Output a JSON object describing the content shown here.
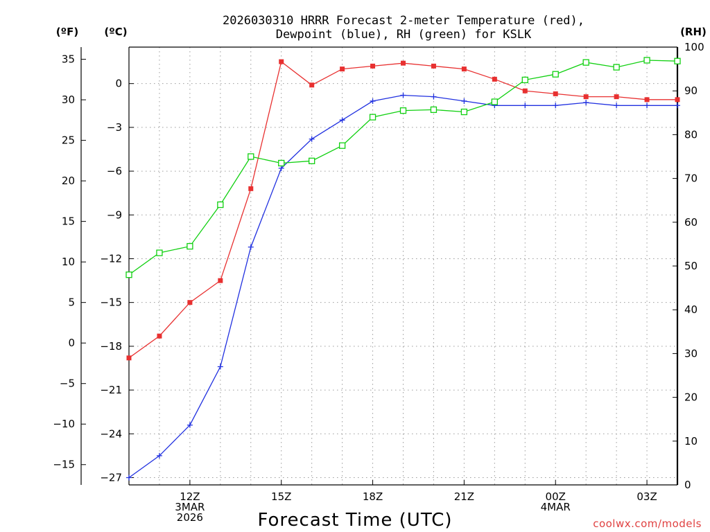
{
  "title": {
    "line1": "2026030310 HRRR Forecast 2-meter Temperature (red),",
    "line2": "Dewpoint (blue), RH (green) for KSLK"
  },
  "units": {
    "f": "(ºF)",
    "c": "(ºC)",
    "rh": "(RH)"
  },
  "credit": "coolwx.com/models",
  "colors": {
    "temp": "#e83030",
    "dewpoint": "#2030e0",
    "rh": "#10d010",
    "grid": "#9a9a9a"
  },
  "chart_data": {
    "type": "line",
    "xlabel": "Forecast Time (UTC)",
    "x_hours": [
      10,
      11,
      12,
      13,
      14,
      15,
      16,
      17,
      18,
      19,
      20,
      21,
      22,
      23,
      24,
      25,
      26,
      27,
      28
    ],
    "xlim": [
      10,
      28
    ],
    "x_ticks": [
      {
        "hour": 12,
        "lines": [
          "12Z",
          "3MAR",
          "2026"
        ]
      },
      {
        "hour": 15,
        "lines": [
          "15Z"
        ]
      },
      {
        "hour": 18,
        "lines": [
          "18Z"
        ]
      },
      {
        "hour": 21,
        "lines": [
          "21Z"
        ]
      },
      {
        "hour": 24,
        "lines": [
          "00Z",
          "4MAR"
        ]
      },
      {
        "hour": 27,
        "lines": [
          "03Z"
        ]
      }
    ],
    "left_axis_f": {
      "label": "(ºF)",
      "ticks": [
        35,
        30,
        25,
        20,
        15,
        10,
        5,
        0,
        -5,
        -10,
        -15
      ],
      "tick_labels": [
        "35",
        "30",
        "25",
        "20",
        "15",
        "10",
        "5",
        "0",
        "−5",
        "−10",
        "−15"
      ]
    },
    "left_axis_c": {
      "label": "(ºC)",
      "ylim": [
        -27.5,
        2.5
      ],
      "ticks": [
        0,
        -3,
        -6,
        -9,
        -12,
        -15,
        -18,
        -21,
        -24,
        -27
      ],
      "tick_labels": [
        "0",
        "−3",
        "−6",
        "−9",
        "−12",
        "−15",
        "−18",
        "−21",
        "−24",
        "−27"
      ]
    },
    "right_axis_rh": {
      "label": "(RH)",
      "ylim": [
        0,
        100
      ],
      "ticks": [
        0,
        10,
        20,
        30,
        40,
        50,
        60,
        70,
        80,
        90,
        100
      ],
      "tick_labels": [
        "0",
        "10",
        "20",
        "30",
        "40",
        "50",
        "60",
        "70",
        "80",
        "90",
        "100"
      ]
    },
    "series": [
      {
        "name": "2-meter Temperature",
        "unit": "C",
        "axis": "c",
        "color_key": "temp",
        "marker": "filled-square",
        "values": [
          -18.8,
          -17.3,
          -15.0,
          -13.5,
          -7.2,
          1.5,
          -0.1,
          1.0,
          1.2,
          1.4,
          1.2,
          1.0,
          0.3,
          -0.5,
          -0.7,
          -0.9,
          -0.9,
          -1.1,
          -1.1
        ]
      },
      {
        "name": "Dewpoint",
        "unit": "C",
        "axis": "c",
        "color_key": "dewpoint",
        "marker": "plus",
        "values": [
          -27.0,
          -25.5,
          -23.4,
          -19.4,
          -11.2,
          -5.8,
          -3.8,
          -2.5,
          -1.2,
          -0.8,
          -0.9,
          -1.2,
          -1.5,
          -1.5,
          -1.5,
          -1.3,
          -1.5,
          -1.5,
          -1.5
        ]
      },
      {
        "name": "Relative Humidity",
        "unit": "%",
        "axis": "rh",
        "color_key": "rh",
        "marker": "open-square",
        "values": [
          48,
          53,
          54.5,
          64,
          75,
          73.5,
          74,
          77.5,
          84,
          85.5,
          85.7,
          85.2,
          87.5,
          92.5,
          93.8,
          96.5,
          95.4,
          97,
          96.8
        ]
      }
    ]
  }
}
